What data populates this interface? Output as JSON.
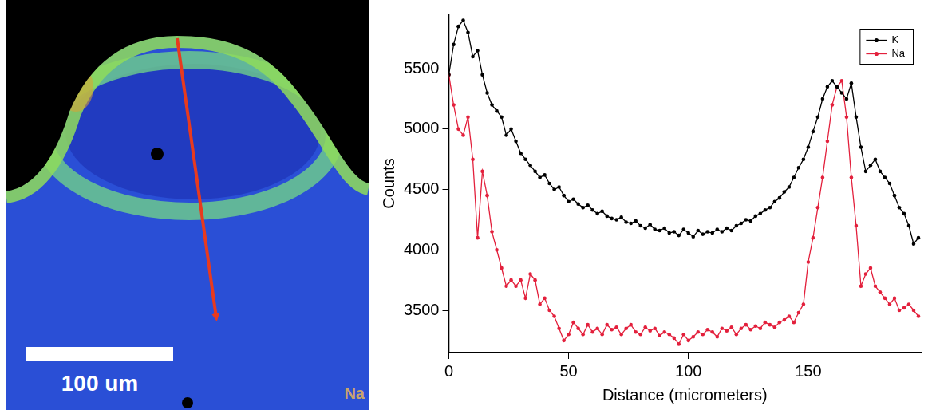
{
  "image_panel": {
    "scale_bar_label": "100 um",
    "element_label": "Na"
  },
  "chart_data": {
    "type": "line",
    "x_label": "Distance (micrometers)",
    "y_label": "Counts",
    "x": [
      0,
      2,
      4,
      6,
      8,
      10,
      12,
      14,
      16,
      18,
      20,
      22,
      24,
      26,
      28,
      30,
      32,
      34,
      36,
      38,
      40,
      42,
      44,
      46,
      48,
      50,
      52,
      54,
      56,
      58,
      60,
      62,
      64,
      66,
      68,
      70,
      72,
      74,
      76,
      78,
      80,
      82,
      84,
      86,
      88,
      90,
      92,
      94,
      96,
      98,
      100,
      102,
      104,
      106,
      108,
      110,
      112,
      114,
      116,
      118,
      120,
      122,
      124,
      126,
      128,
      130,
      132,
      134,
      136,
      138,
      140,
      142,
      144,
      146,
      148,
      150,
      152,
      154,
      156,
      158,
      160,
      162,
      164,
      166,
      168,
      170,
      172,
      174,
      176,
      178,
      180,
      182,
      184,
      186,
      188,
      190,
      192,
      194,
      196
    ],
    "series": [
      {
        "name": "K",
        "color": "#000000",
        "marker": "circle",
        "line_style": "solid",
        "values": [
          5450,
          5700,
          5850,
          5900,
          5800,
          5600,
          5650,
          5450,
          5300,
          5200,
          5150,
          5100,
          4950,
          5000,
          4900,
          4800,
          4750,
          4700,
          4650,
          4600,
          4620,
          4550,
          4500,
          4520,
          4450,
          4400,
          4420,
          4380,
          4350,
          4370,
          4330,
          4300,
          4320,
          4280,
          4260,
          4250,
          4270,
          4230,
          4220,
          4240,
          4200,
          4180,
          4210,
          4170,
          4160,
          4180,
          4140,
          4150,
          4120,
          4170,
          4140,
          4110,
          4160,
          4130,
          4150,
          4140,
          4170,
          4150,
          4180,
          4160,
          4200,
          4220,
          4250,
          4240,
          4280,
          4300,
          4330,
          4350,
          4400,
          4430,
          4480,
          4520,
          4600,
          4680,
          4750,
          4850,
          4980,
          5100,
          5250,
          5350,
          5400,
          5350,
          5300,
          5250,
          5380,
          5100,
          4850,
          4650,
          4700,
          4750,
          4650,
          4600,
          4550,
          4450,
          4350,
          4300,
          4200,
          4050,
          4100
        ]
      },
      {
        "name": "Na",
        "color": "#e3203c",
        "marker": "circle",
        "line_style": "solid",
        "values": [
          5450,
          5200,
          5000,
          4950,
          5100,
          4750,
          4100,
          4650,
          4450,
          4150,
          4000,
          3850,
          3700,
          3750,
          3700,
          3750,
          3600,
          3800,
          3750,
          3550,
          3600,
          3500,
          3450,
          3350,
          3250,
          3300,
          3400,
          3350,
          3300,
          3380,
          3320,
          3350,
          3300,
          3380,
          3340,
          3360,
          3300,
          3350,
          3380,
          3320,
          3300,
          3360,
          3330,
          3350,
          3290,
          3320,
          3300,
          3270,
          3220,
          3300,
          3250,
          3280,
          3320,
          3300,
          3340,
          3320,
          3280,
          3350,
          3330,
          3360,
          3300,
          3350,
          3380,
          3340,
          3370,
          3350,
          3400,
          3380,
          3360,
          3400,
          3420,
          3450,
          3400,
          3480,
          3550,
          3900,
          4100,
          4350,
          4600,
          4900,
          5200,
          5350,
          5400,
          5100,
          4600,
          4200,
          3700,
          3800,
          3850,
          3700,
          3650,
          3600,
          3550,
          3600,
          3500,
          3520,
          3550,
          3500,
          3450
        ]
      }
    ],
    "xlim": [
      0,
      197
    ],
    "xticks": [
      0,
      50,
      100,
      150
    ],
    "ylim": [
      3150,
      5950
    ],
    "yticks": [
      3500,
      4000,
      4500,
      5000,
      5500
    ],
    "grid": false,
    "legend": "top-right"
  }
}
